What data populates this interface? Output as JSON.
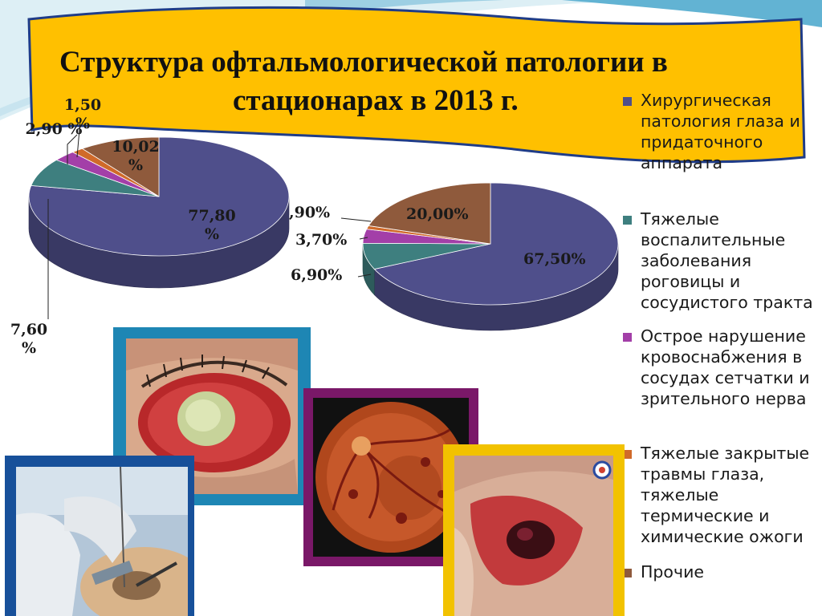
{
  "title": {
    "line1": "Структура офтальмологической патологии в",
    "line2": "стационарах в 2013 г."
  },
  "colors": {
    "series": [
      "#4F4F8B",
      "#3E7F7F",
      "#A33FA8",
      "#D06A2A",
      "#8F5A3C"
    ],
    "banner": "#FFC000",
    "banner_border": "#1F3C88"
  },
  "legend": [
    "Хирургическая патология глаза и придаточного аппарата",
    "Тяжелые воспалительные заболевания роговицы и сосудистого тракта",
    "Острое нарушение кровоснабжения в сосудах сетчатки и зрительного нерва",
    "Тяжелые закрытые травмы глаза, тяжелые термические и химические ожоги",
    "Прочие"
  ],
  "chart_data": [
    {
      "type": "pie",
      "categories": [
        "Хирургическая патология глаза и придаточного аппарата",
        "Тяжелые воспалительные заболевания роговицы и сосудистого тракта",
        "Острое нарушение кровоснабжения в сосудах сетчатки и зрительного нерва",
        "Тяжелые закрытые травмы глаза, тяжелые термические и химические ожоги",
        "Прочие"
      ],
      "values": [
        77.8,
        7.6,
        2.9,
        1.5,
        10.02
      ],
      "data_labels": [
        "77,80 %",
        "7,60 %",
        "2,90 %",
        "1,50 %",
        "10,02 %"
      ],
      "style": "3d"
    },
    {
      "type": "pie",
      "categories": [
        "Хирургическая патология глаза и придаточного аппарата",
        "Тяжелые воспалительные заболевания роговицы и сосудистого тракта",
        "Острое нарушение кровоснабжения в сосудах сетчатки и зрительного нерва",
        "Тяжелые закрытые травмы глаза, тяжелые термические и химические ожоги",
        "Прочие"
      ],
      "values": [
        67.5,
        6.9,
        3.7,
        0.9,
        20.0
      ],
      "data_labels": [
        "67,50%",
        "6,90%",
        "3,70%",
        ",90%",
        "20,00%"
      ],
      "style": "3d"
    }
  ],
  "photos": [
    {
      "name": "eye-injury-photo",
      "frame": "#1E86B4"
    },
    {
      "name": "retina-photo",
      "frame": "#7A1868"
    },
    {
      "name": "eye-surgery-photo",
      "frame": "#17509A"
    },
    {
      "name": "eyelid-injury-photo",
      "frame": "#F2C200"
    }
  ]
}
